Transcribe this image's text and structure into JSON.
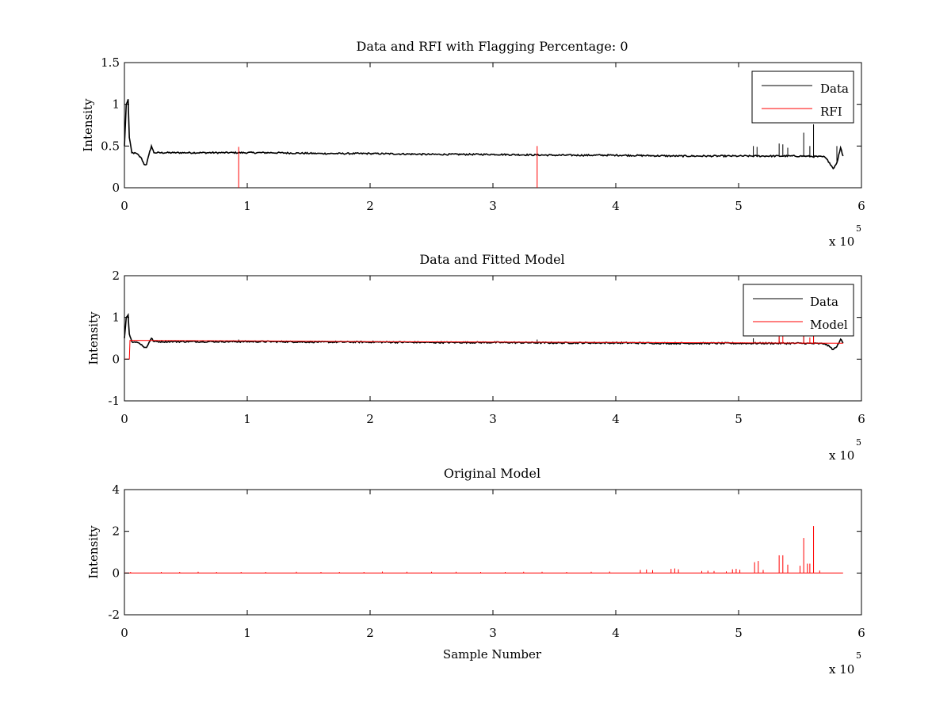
{
  "colors": {
    "data": "#000000",
    "rfi": "#ff0000",
    "background": "#ffffff"
  },
  "chart_data": [
    {
      "type": "line",
      "title": "Data and RFI with Flagging Percentage: 0",
      "xlabel": "",
      "ylabel": "Intensity",
      "xlim": [
        0,
        600000
      ],
      "ylim": [
        0,
        1.5
      ],
      "xticks": [
        0,
        1,
        2,
        3,
        4,
        5,
        6
      ],
      "xtick_labels": [
        "0",
        "1",
        "2",
        "3",
        "4",
        "5",
        "6"
      ],
      "yticks": [
        0,
        0.5,
        1,
        1.5
      ],
      "ytick_labels": [
        "0",
        "0.5",
        "1",
        "1.5"
      ],
      "x_exponent": {
        "base": "x 10",
        "power": "5"
      },
      "legend": {
        "position": "top-right",
        "entries": [
          "Data",
          "RFI"
        ]
      },
      "series": [
        {
          "name": "Data",
          "color": "#000000",
          "points": [
            [
              0,
              0.5
            ],
            [
              1500,
              1.0
            ],
            [
              3000,
              1.06
            ],
            [
              4000,
              0.6
            ],
            [
              6000,
              0.42
            ],
            [
              10000,
              0.41
            ],
            [
              14000,
              0.35
            ],
            [
              16000,
              0.28
            ],
            [
              18000,
              0.28
            ],
            [
              20000,
              0.4
            ],
            [
              22000,
              0.5
            ],
            [
              24000,
              0.42
            ],
            [
              40000,
              0.42
            ],
            [
              80000,
              0.42
            ],
            [
              120000,
              0.42
            ],
            [
              160000,
              0.41
            ],
            [
              200000,
              0.41
            ],
            [
              250000,
              0.4
            ],
            [
              300000,
              0.4
            ],
            [
              350000,
              0.39
            ],
            [
              400000,
              0.39
            ],
            [
              450000,
              0.38
            ],
            [
              500000,
              0.38
            ],
            [
              550000,
              0.38
            ],
            [
              570000,
              0.37
            ],
            [
              574000,
              0.3
            ],
            [
              577000,
              0.23
            ],
            [
              580000,
              0.3
            ],
            [
              583000,
              0.48
            ],
            [
              585000,
              0.38
            ]
          ],
          "spikes": [
            [
              512000,
              0.5
            ],
            [
              515000,
              0.49
            ],
            [
              533000,
              0.53
            ],
            [
              536000,
              0.52
            ],
            [
              540000,
              0.48
            ],
            [
              553000,
              0.66
            ],
            [
              558000,
              0.5
            ],
            [
              561000,
              0.76
            ],
            [
              580000,
              0.5
            ]
          ]
        },
        {
          "name": "RFI",
          "color": "#ff0000",
          "spikes": [
            [
              93000,
              0.49
            ],
            [
              336000,
              0.5
            ]
          ]
        }
      ]
    },
    {
      "type": "line",
      "title": "Data and Fitted Model",
      "xlabel": "",
      "ylabel": "Intensity",
      "xlim": [
        0,
        600000
      ],
      "ylim": [
        -1,
        2
      ],
      "xticks": [
        0,
        1,
        2,
        3,
        4,
        5,
        6
      ],
      "xtick_labels": [
        "0",
        "1",
        "2",
        "3",
        "4",
        "5",
        "6"
      ],
      "yticks": [
        -1,
        0,
        1,
        2
      ],
      "ytick_labels": [
        "-1",
        "0",
        "1",
        "2"
      ],
      "x_exponent": {
        "base": "x 10",
        "power": "5"
      },
      "legend": {
        "position": "top-right",
        "entries": [
          "Data",
          "Model"
        ]
      },
      "series": [
        {
          "name": "Data",
          "color": "#000000",
          "points": [
            [
              0,
              0.5
            ],
            [
              1500,
              1.0
            ],
            [
              3000,
              1.06
            ],
            [
              4000,
              0.6
            ],
            [
              6000,
              0.42
            ],
            [
              10000,
              0.41
            ],
            [
              14000,
              0.35
            ],
            [
              16000,
              0.28
            ],
            [
              18000,
              0.28
            ],
            [
              20000,
              0.4
            ],
            [
              22000,
              0.5
            ],
            [
              24000,
              0.42
            ],
            [
              40000,
              0.42
            ],
            [
              80000,
              0.42
            ],
            [
              120000,
              0.42
            ],
            [
              160000,
              0.41
            ],
            [
              200000,
              0.41
            ],
            [
              250000,
              0.4
            ],
            [
              300000,
              0.4
            ],
            [
              350000,
              0.39
            ],
            [
              400000,
              0.39
            ],
            [
              450000,
              0.38
            ],
            [
              500000,
              0.38
            ],
            [
              550000,
              0.38
            ],
            [
              570000,
              0.37
            ],
            [
              574000,
              0.3
            ],
            [
              577000,
              0.23
            ],
            [
              580000,
              0.3
            ],
            [
              583000,
              0.48
            ],
            [
              585000,
              0.38
            ]
          ],
          "spikes": [
            [
              93000,
              0.47
            ],
            [
              336000,
              0.47
            ],
            [
              512000,
              0.5
            ],
            [
              533000,
              0.53
            ],
            [
              553000,
              0.66
            ],
            [
              561000,
              0.76
            ]
          ]
        },
        {
          "name": "Model",
          "color": "#ff0000",
          "points": [
            [
              0,
              0.0
            ],
            [
              4000,
              0.0
            ],
            [
              4500,
              0.45
            ],
            [
              100000,
              0.44
            ],
            [
              200000,
              0.42
            ],
            [
              300000,
              0.41
            ],
            [
              400000,
              0.4
            ],
            [
              500000,
              0.39
            ],
            [
              585000,
              0.38
            ]
          ],
          "spikes": [
            [
              533000,
              0.58
            ],
            [
              536000,
              0.55
            ],
            [
              553000,
              0.62
            ],
            [
              558000,
              0.52
            ],
            [
              561000,
              0.55
            ]
          ]
        }
      ]
    },
    {
      "type": "line",
      "title": "Original Model",
      "xlabel": "Sample Number",
      "ylabel": "Intensity",
      "xlim": [
        0,
        600000
      ],
      "ylim": [
        -2,
        4
      ],
      "xticks": [
        0,
        1,
        2,
        3,
        4,
        5,
        6
      ],
      "xtick_labels": [
        "0",
        "1",
        "2",
        "3",
        "4",
        "5",
        "6"
      ],
      "yticks": [
        -2,
        0,
        2,
        4
      ],
      "ytick_labels": [
        "-2",
        "0",
        "2",
        "4"
      ],
      "x_exponent": {
        "base": "x 10",
        "power": "5"
      },
      "series": [
        {
          "color": "#ff0000",
          "points": [
            [
              0,
              0.0
            ],
            [
              585000,
              0.0
            ]
          ],
          "spikes": [
            [
              5000,
              0.05
            ],
            [
              30000,
              0.05
            ],
            [
              45000,
              0.05
            ],
            [
              60000,
              0.06
            ],
            [
              75000,
              0.05
            ],
            [
              95000,
              0.05
            ],
            [
              115000,
              0.05
            ],
            [
              140000,
              0.06
            ],
            [
              160000,
              0.05
            ],
            [
              175000,
              0.05
            ],
            [
              195000,
              0.05
            ],
            [
              210000,
              0.07
            ],
            [
              230000,
              0.06
            ],
            [
              250000,
              0.06
            ],
            [
              270000,
              0.06
            ],
            [
              290000,
              0.05
            ],
            [
              310000,
              0.05
            ],
            [
              325000,
              0.06
            ],
            [
              340000,
              0.06
            ],
            [
              360000,
              0.05
            ],
            [
              380000,
              0.06
            ],
            [
              395000,
              0.07
            ],
            [
              420000,
              0.15
            ],
            [
              425000,
              0.17
            ],
            [
              430000,
              0.14
            ],
            [
              445000,
              0.2
            ],
            [
              448000,
              0.22
            ],
            [
              451000,
              0.18
            ],
            [
              470000,
              0.1
            ],
            [
              475000,
              0.11
            ],
            [
              480000,
              0.1
            ],
            [
              490000,
              0.08
            ],
            [
              495000,
              0.18
            ],
            [
              498000,
              0.2
            ],
            [
              501000,
              0.16
            ],
            [
              513000,
              0.52
            ],
            [
              516000,
              0.58
            ],
            [
              520000,
              0.15
            ],
            [
              533000,
              0.85
            ],
            [
              536000,
              0.85
            ],
            [
              540000,
              0.4
            ],
            [
              550000,
              0.35
            ],
            [
              553000,
              1.68
            ],
            [
              556000,
              0.45
            ],
            [
              558000,
              0.45
            ],
            [
              561000,
              2.25
            ],
            [
              566000,
              0.12
            ]
          ]
        }
      ]
    }
  ]
}
